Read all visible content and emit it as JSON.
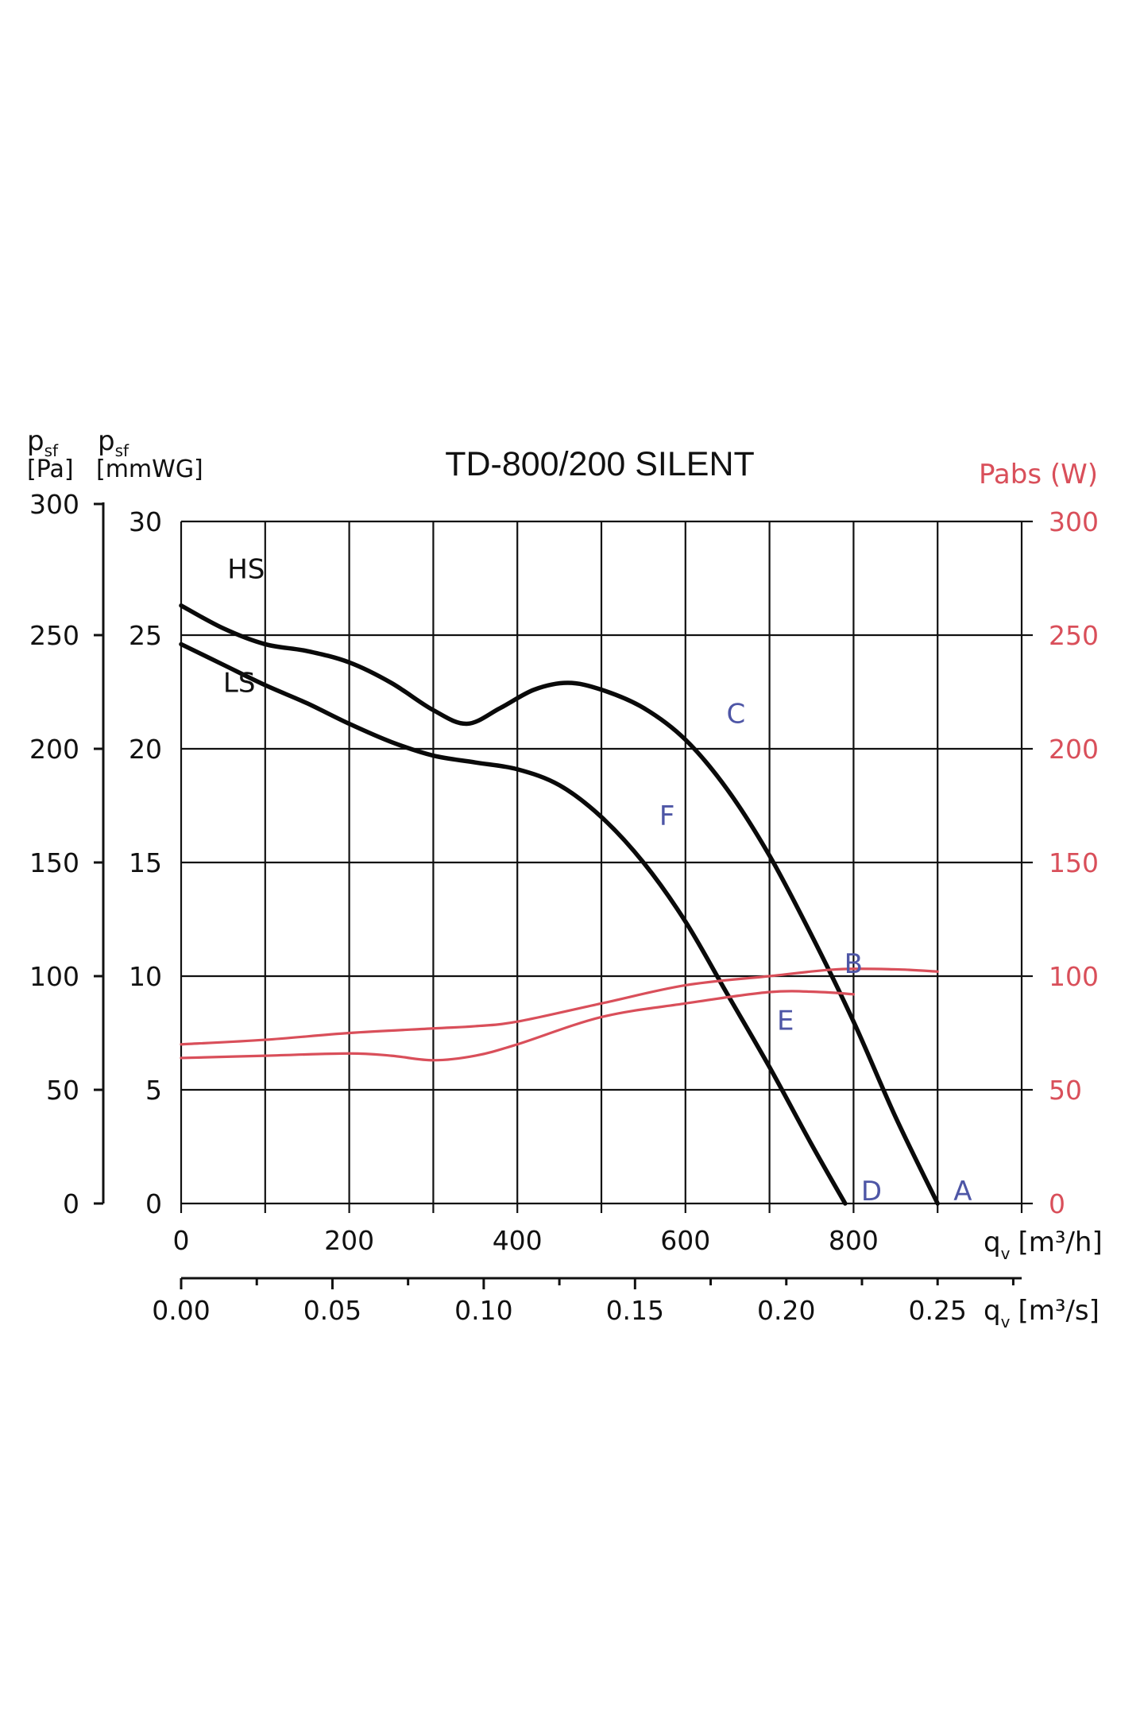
{
  "colors": {
    "pressure_curve": "#0a0a0a",
    "power_curve": "#d94f5a",
    "point_label": "#4e56a6",
    "power_axis": "#d94f5a",
    "grid": "#111111"
  },
  "chart_data": {
    "type": "line",
    "title": "TD-800/200 SILENT",
    "grid": true,
    "y_left_outer": {
      "label_symbol": "p",
      "label_subscript": "sf",
      "label_unit": "[Pa]",
      "ticks": [
        "0",
        "50",
        "100",
        "150",
        "200",
        "250",
        "300"
      ],
      "range": [
        0,
        300
      ]
    },
    "y_left_inner": {
      "label_symbol": "p",
      "label_subscript": "sf",
      "label_unit": "[mmWG]",
      "ticks": [
        "0",
        "5",
        "10",
        "15",
        "20",
        "25",
        "30"
      ],
      "range": [
        0,
        30
      ]
    },
    "y_right": {
      "label": "Pabs (W)",
      "ticks": [
        "0",
        "50",
        "100",
        "150",
        "200",
        "250",
        "300"
      ],
      "range": [
        0,
        300
      ]
    },
    "x_primary": {
      "label_symbol": "q",
      "label_subscript": "v",
      "label_unit": "[m³/h]",
      "ticks": [
        "0",
        "200",
        "400",
        "600",
        "800"
      ],
      "tick_values": [
        0,
        200,
        400,
        600,
        800
      ],
      "range": [
        0,
        1000
      ]
    },
    "x_secondary": {
      "label_symbol": "q",
      "label_subscript": "v",
      "label_unit": "[m³/s]",
      "ticks": [
        "0.00",
        "0.05",
        "0.10",
        "0.15",
        "0.20",
        "0.25"
      ],
      "tick_values": [
        0,
        0.05,
        0.1,
        0.15,
        0.2,
        0.25
      ]
    },
    "series": [
      {
        "name": "HS",
        "axis": "pressure",
        "points": [
          [
            0,
            263
          ],
          [
            50,
            253
          ],
          [
            100,
            246
          ],
          [
            150,
            243
          ],
          [
            200,
            238
          ],
          [
            250,
            229
          ],
          [
            300,
            217
          ],
          [
            340,
            211
          ],
          [
            380,
            218
          ],
          [
            420,
            226
          ],
          [
            460,
            229
          ],
          [
            500,
            226
          ],
          [
            550,
            218
          ],
          [
            600,
            204
          ],
          [
            650,
            182
          ],
          [
            700,
            153
          ],
          [
            750,
            118
          ],
          [
            800,
            80
          ],
          [
            850,
            38
          ],
          [
            900,
            0
          ]
        ]
      },
      {
        "name": "LS",
        "axis": "pressure",
        "points": [
          [
            0,
            246
          ],
          [
            50,
            237
          ],
          [
            100,
            228
          ],
          [
            150,
            220
          ],
          [
            200,
            211
          ],
          [
            250,
            203
          ],
          [
            300,
            197
          ],
          [
            350,
            194
          ],
          [
            400,
            191
          ],
          [
            450,
            184
          ],
          [
            500,
            170
          ],
          [
            550,
            150
          ],
          [
            600,
            124
          ],
          [
            650,
            92
          ],
          [
            700,
            60
          ],
          [
            750,
            26
          ],
          [
            790,
            0
          ]
        ]
      },
      {
        "name": "HS power",
        "axis": "power",
        "points": [
          [
            0,
            70
          ],
          [
            100,
            72
          ],
          [
            200,
            75
          ],
          [
            300,
            77
          ],
          [
            350,
            78
          ],
          [
            400,
            80
          ],
          [
            500,
            88
          ],
          [
            600,
            96
          ],
          [
            700,
            100
          ],
          [
            780,
            103
          ],
          [
            850,
            103
          ],
          [
            900,
            102
          ]
        ]
      },
      {
        "name": "LS power",
        "axis": "power",
        "points": [
          [
            0,
            64
          ],
          [
            100,
            65
          ],
          [
            200,
            66
          ],
          [
            250,
            65
          ],
          [
            300,
            63
          ],
          [
            350,
            65
          ],
          [
            400,
            70
          ],
          [
            500,
            82
          ],
          [
            600,
            88
          ],
          [
            700,
            93
          ],
          [
            760,
            93
          ],
          [
            800,
            92
          ]
        ]
      }
    ],
    "point_labels": [
      {
        "text": "A",
        "x": 900,
        "p": 0
      },
      {
        "text": "B",
        "x": 770,
        "p": 100
      },
      {
        "text": "C",
        "x": 630,
        "p": 210
      },
      {
        "text": "D",
        "x": 790,
        "p": 0
      },
      {
        "text": "E",
        "x": 690,
        "p": 75
      },
      {
        "text": "F",
        "x": 550,
        "p": 165
      }
    ],
    "curve_labels": [
      {
        "text": "HS",
        "x": 55,
        "p": 275
      },
      {
        "text": "LS",
        "x": 50,
        "p": 225
      }
    ]
  }
}
